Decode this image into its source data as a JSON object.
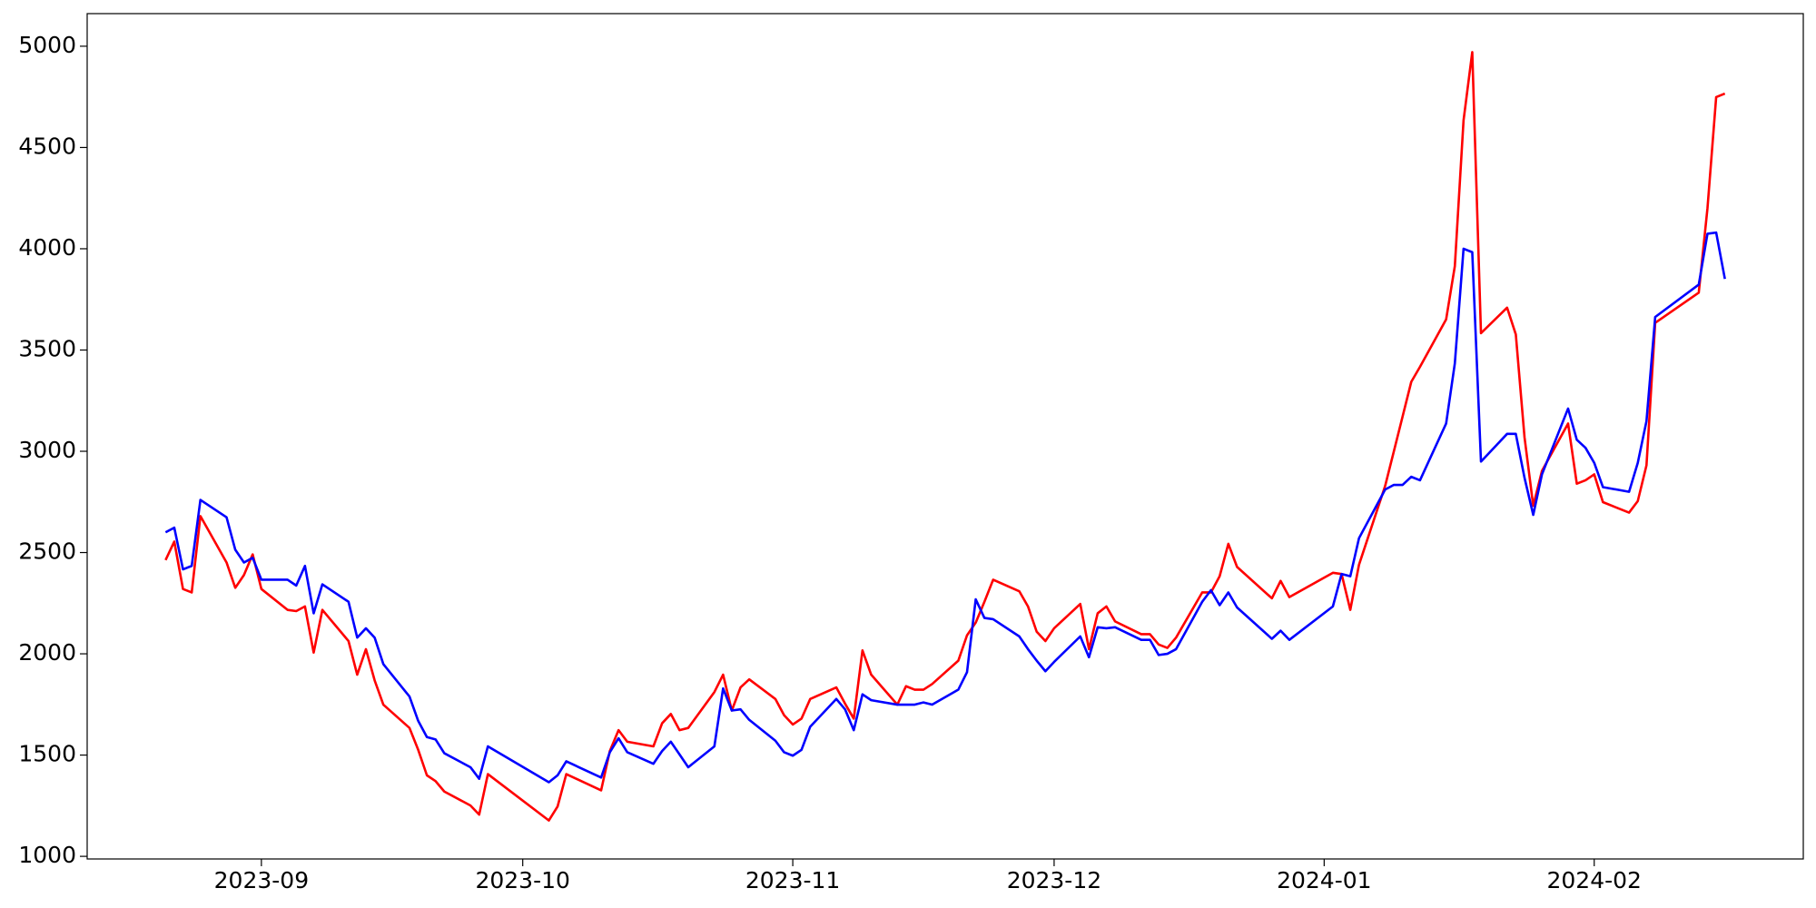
{
  "chart_data": {
    "type": "line",
    "x": [
      "2023-08-21",
      "2023-08-22",
      "2023-08-23",
      "2023-08-24",
      "2023-08-25",
      "2023-08-28",
      "2023-08-29",
      "2023-08-30",
      "2023-08-31",
      "2023-09-01",
      "2023-09-04",
      "2023-09-05",
      "2023-09-06",
      "2023-09-07",
      "2023-09-08",
      "2023-09-11",
      "2023-09-12",
      "2023-09-13",
      "2023-09-14",
      "2023-09-15",
      "2023-09-18",
      "2023-09-19",
      "2023-09-20",
      "2023-09-21",
      "2023-09-22",
      "2023-09-25",
      "2023-09-26",
      "2023-09-27",
      "2023-10-04",
      "2023-10-05",
      "2023-10-06",
      "2023-10-10",
      "2023-10-11",
      "2023-10-12",
      "2023-10-13",
      "2023-10-16",
      "2023-10-17",
      "2023-10-18",
      "2023-10-19",
      "2023-10-20",
      "2023-10-23",
      "2023-10-24",
      "2023-10-25",
      "2023-10-26",
      "2023-10-27",
      "2023-10-30",
      "2023-10-31",
      "2023-11-01",
      "2023-11-02",
      "2023-11-03",
      "2023-11-06",
      "2023-11-07",
      "2023-11-08",
      "2023-11-09",
      "2023-11-10",
      "2023-11-13",
      "2023-11-14",
      "2023-11-15",
      "2023-11-16",
      "2023-11-17",
      "2023-11-20",
      "2023-11-21",
      "2023-11-22",
      "2023-11-23",
      "2023-11-24",
      "2023-11-27",
      "2023-11-28",
      "2023-11-29",
      "2023-11-30",
      "2023-12-01",
      "2023-12-04",
      "2023-12-05",
      "2023-12-06",
      "2023-12-07",
      "2023-12-08",
      "2023-12-11",
      "2023-12-12",
      "2023-12-13",
      "2023-12-14",
      "2023-12-15",
      "2023-12-18",
      "2023-12-19",
      "2023-12-20",
      "2023-12-21",
      "2023-12-22",
      "2023-12-26",
      "2023-12-27",
      "2023-12-28",
      "2024-01-02",
      "2024-01-03",
      "2024-01-04",
      "2024-01-05",
      "2024-01-08",
      "2024-01-09",
      "2024-01-10",
      "2024-01-11",
      "2024-01-12",
      "2024-01-15",
      "2024-01-16",
      "2024-01-17",
      "2024-01-18",
      "2024-01-19",
      "2024-01-22",
      "2024-01-23",
      "2024-01-24",
      "2024-01-25",
      "2024-01-26",
      "2024-01-29",
      "2024-01-30",
      "2024-01-31",
      "2024-02-01",
      "2024-02-02",
      "2024-02-05",
      "2024-02-06",
      "2024-02-07",
      "2024-02-08",
      "2024-02-13",
      "2024-02-14",
      "2024-02-15",
      "2024-02-16"
    ],
    "series": [
      {
        "color": "#ff0000",
        "values": [
          2463,
          2554,
          2320,
          2303,
          2680,
          2451,
          2326,
          2389,
          2491,
          2320,
          2217,
          2211,
          2234,
          2006,
          2217,
          2063,
          1897,
          2023,
          1869,
          1749,
          1634,
          1526,
          1400,
          1371,
          1320,
          1251,
          1206,
          1406,
          1177,
          1246,
          1406,
          1326,
          1520,
          1623,
          1566,
          1543,
          1657,
          1703,
          1623,
          1634,
          1811,
          1897,
          1720,
          1834,
          1874,
          1777,
          1697,
          1651,
          1680,
          1777,
          1834,
          1754,
          1680,
          2017,
          1897,
          1749,
          1840,
          1823,
          1823,
          1851,
          1966,
          2091,
          2154,
          2257,
          2366,
          2309,
          2234,
          2109,
          2063,
          2126,
          2246,
          2023,
          2200,
          2234,
          2160,
          2097,
          2097,
          2046,
          2029,
          2080,
          2303,
          2303,
          2383,
          2543,
          2429,
          2274,
          2360,
          2280,
          2400,
          2394,
          2217,
          2440,
          2829,
          3000,
          3171,
          3343,
          3417,
          3651,
          3914,
          4634,
          4971,
          3583,
          3709,
          3577,
          3069,
          2731,
          2903,
          3137,
          2840,
          2857,
          2886,
          2749,
          2697,
          2754,
          2931,
          3634,
          3783,
          4200,
          4749,
          4766
        ]
      },
      {
        "color": "#0000ff",
        "values": [
          2600,
          2623,
          2417,
          2434,
          2760,
          2674,
          2514,
          2451,
          2474,
          2366,
          2366,
          2337,
          2434,
          2200,
          2343,
          2257,
          2080,
          2126,
          2080,
          1949,
          1789,
          1669,
          1589,
          1577,
          1509,
          1440,
          1383,
          1543,
          1366,
          1400,
          1469,
          1389,
          1514,
          1583,
          1514,
          1457,
          1520,
          1566,
          1503,
          1440,
          1543,
          1829,
          1720,
          1726,
          1674,
          1571,
          1514,
          1497,
          1526,
          1640,
          1777,
          1726,
          1623,
          1800,
          1771,
          1749,
          1749,
          1749,
          1760,
          1749,
          1823,
          1909,
          2269,
          2177,
          2171,
          2086,
          2023,
          1966,
          1914,
          1960,
          2086,
          1983,
          2131,
          2126,
          2131,
          2069,
          2069,
          1994,
          2000,
          2023,
          2257,
          2314,
          2240,
          2303,
          2229,
          2074,
          2114,
          2069,
          2234,
          2394,
          2383,
          2571,
          2811,
          2834,
          2834,
          2874,
          2857,
          3137,
          3434,
          4000,
          3983,
          2949,
          3086,
          3086,
          2869,
          2686,
          2886,
          3211,
          3057,
          3017,
          2943,
          2823,
          2800,
          2943,
          3149,
          3663,
          3823,
          4074,
          4080,
          3851
        ]
      }
    ],
    "xlim": [
      "2023-08-12",
      "2024-02-25"
    ],
    "xticks": [
      {
        "value": "2023-09-01",
        "label": "2023-09"
      },
      {
        "value": "2023-10-01",
        "label": "2023-10"
      },
      {
        "value": "2023-11-01",
        "label": "2023-11"
      },
      {
        "value": "2023-12-01",
        "label": "2023-12"
      },
      {
        "value": "2024-01-01",
        "label": "2024-01"
      },
      {
        "value": "2024-02-01",
        "label": "2024-02"
      }
    ],
    "ylim": [
      987,
      5161
    ],
    "yticks": [
      1000,
      1500,
      2000,
      2500,
      3000,
      3500,
      4000,
      4500,
      5000
    ],
    "grid": false
  }
}
